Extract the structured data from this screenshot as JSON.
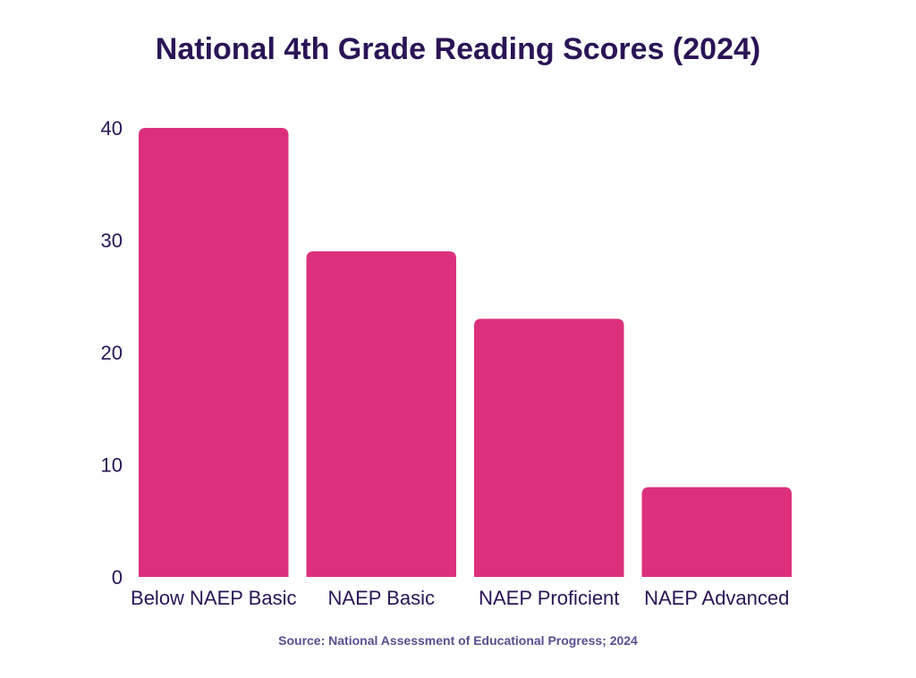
{
  "chart_data": {
    "type": "bar",
    "title": "National 4th Grade Reading Scores (2024)",
    "categories": [
      "Below NAEP Basic",
      "NAEP Basic",
      "NAEP Proficient",
      "NAEP Advanced"
    ],
    "values": [
      40,
      29,
      23,
      8
    ],
    "yticks": [
      "0",
      "10",
      "20",
      "30",
      "40"
    ],
    "ylim": [
      0,
      40
    ],
    "xlabel": "",
    "ylabel": "",
    "grid": false,
    "legend": "none",
    "bar_color": "#dc307c",
    "source": "Source: National Assessment of Educational Progress; 2024"
  }
}
